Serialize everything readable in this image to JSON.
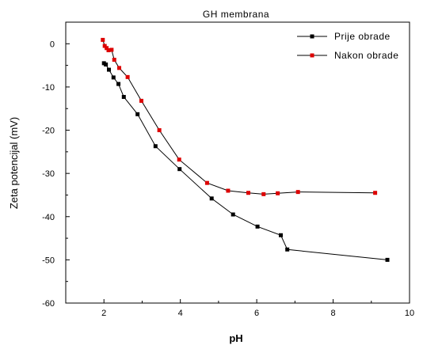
{
  "chart_data": {
    "type": "line",
    "title": "GH membrana",
    "xlabel": "pH",
    "ylabel": "Zeta potencijal (mV)",
    "xlim": [
      1,
      10
    ],
    "ylim": [
      -60,
      5
    ],
    "xticks": [
      2,
      4,
      6,
      8,
      10
    ],
    "yticks": [
      0,
      -10,
      -20,
      -30,
      -40,
      -50,
      -60
    ],
    "grid": false,
    "legend": "top-right",
    "series": [
      {
        "name": "Prije obrade",
        "color": "#000000",
        "marker": "square",
        "x": [
          2.0,
          2.05,
          2.13,
          2.25,
          2.38,
          2.52,
          2.88,
          3.35,
          3.98,
          4.82,
          5.38,
          6.02,
          6.63,
          6.8,
          9.42
        ],
        "y": [
          -4.5,
          -4.8,
          -6.0,
          -7.8,
          -9.3,
          -12.3,
          -16.3,
          -23.7,
          -29.0,
          -35.8,
          -39.5,
          -42.3,
          -44.3,
          -47.6,
          -50.0
        ]
      },
      {
        "name": "Nakon obrade",
        "color": "#dd0000",
        "marker": "square",
        "x": [
          1.97,
          2.02,
          2.07,
          2.12,
          2.2,
          2.27,
          2.4,
          2.62,
          2.98,
          3.45,
          3.97,
          4.7,
          5.25,
          5.78,
          6.18,
          6.55,
          7.08,
          9.1
        ],
        "y": [
          0.9,
          -0.5,
          -1.0,
          -1.5,
          -1.4,
          -3.7,
          -5.6,
          -7.7,
          -13.2,
          -20.0,
          -26.8,
          -32.2,
          -34.0,
          -34.5,
          -34.8,
          -34.6,
          -34.3,
          -34.5
        ]
      }
    ]
  }
}
